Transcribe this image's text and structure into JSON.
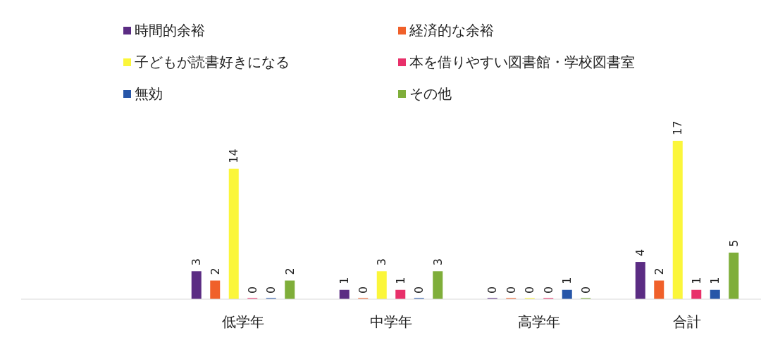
{
  "chart_data": {
    "type": "bar",
    "categories": [
      null,
      "低学年",
      "中学年",
      "高学年",
      "合計"
    ],
    "series": [
      {
        "name": "時間的余裕",
        "color": "#5b2c83",
        "values": [
          null,
          3,
          1,
          0,
          4
        ]
      },
      {
        "name": "経済的な余裕",
        "color": "#f0602a",
        "values": [
          null,
          2,
          0,
          0,
          2
        ]
      },
      {
        "name": "子どもが読書好きになる",
        "color": "#fbf63a",
        "values": [
          null,
          14,
          3,
          0,
          17
        ]
      },
      {
        "name": "本を借りやすい図書館・学校図書室",
        "color": "#e8306a",
        "values": [
          null,
          0,
          1,
          0,
          1
        ]
      },
      {
        "name": "無効",
        "color": "#2756a8",
        "values": [
          null,
          0,
          0,
          1,
          1
        ]
      },
      {
        "name": "その他",
        "color": "#7fae3a",
        "values": [
          null,
          2,
          3,
          0,
          5
        ]
      }
    ],
    "data_labels": true,
    "legend": "top",
    "grid": false
  }
}
